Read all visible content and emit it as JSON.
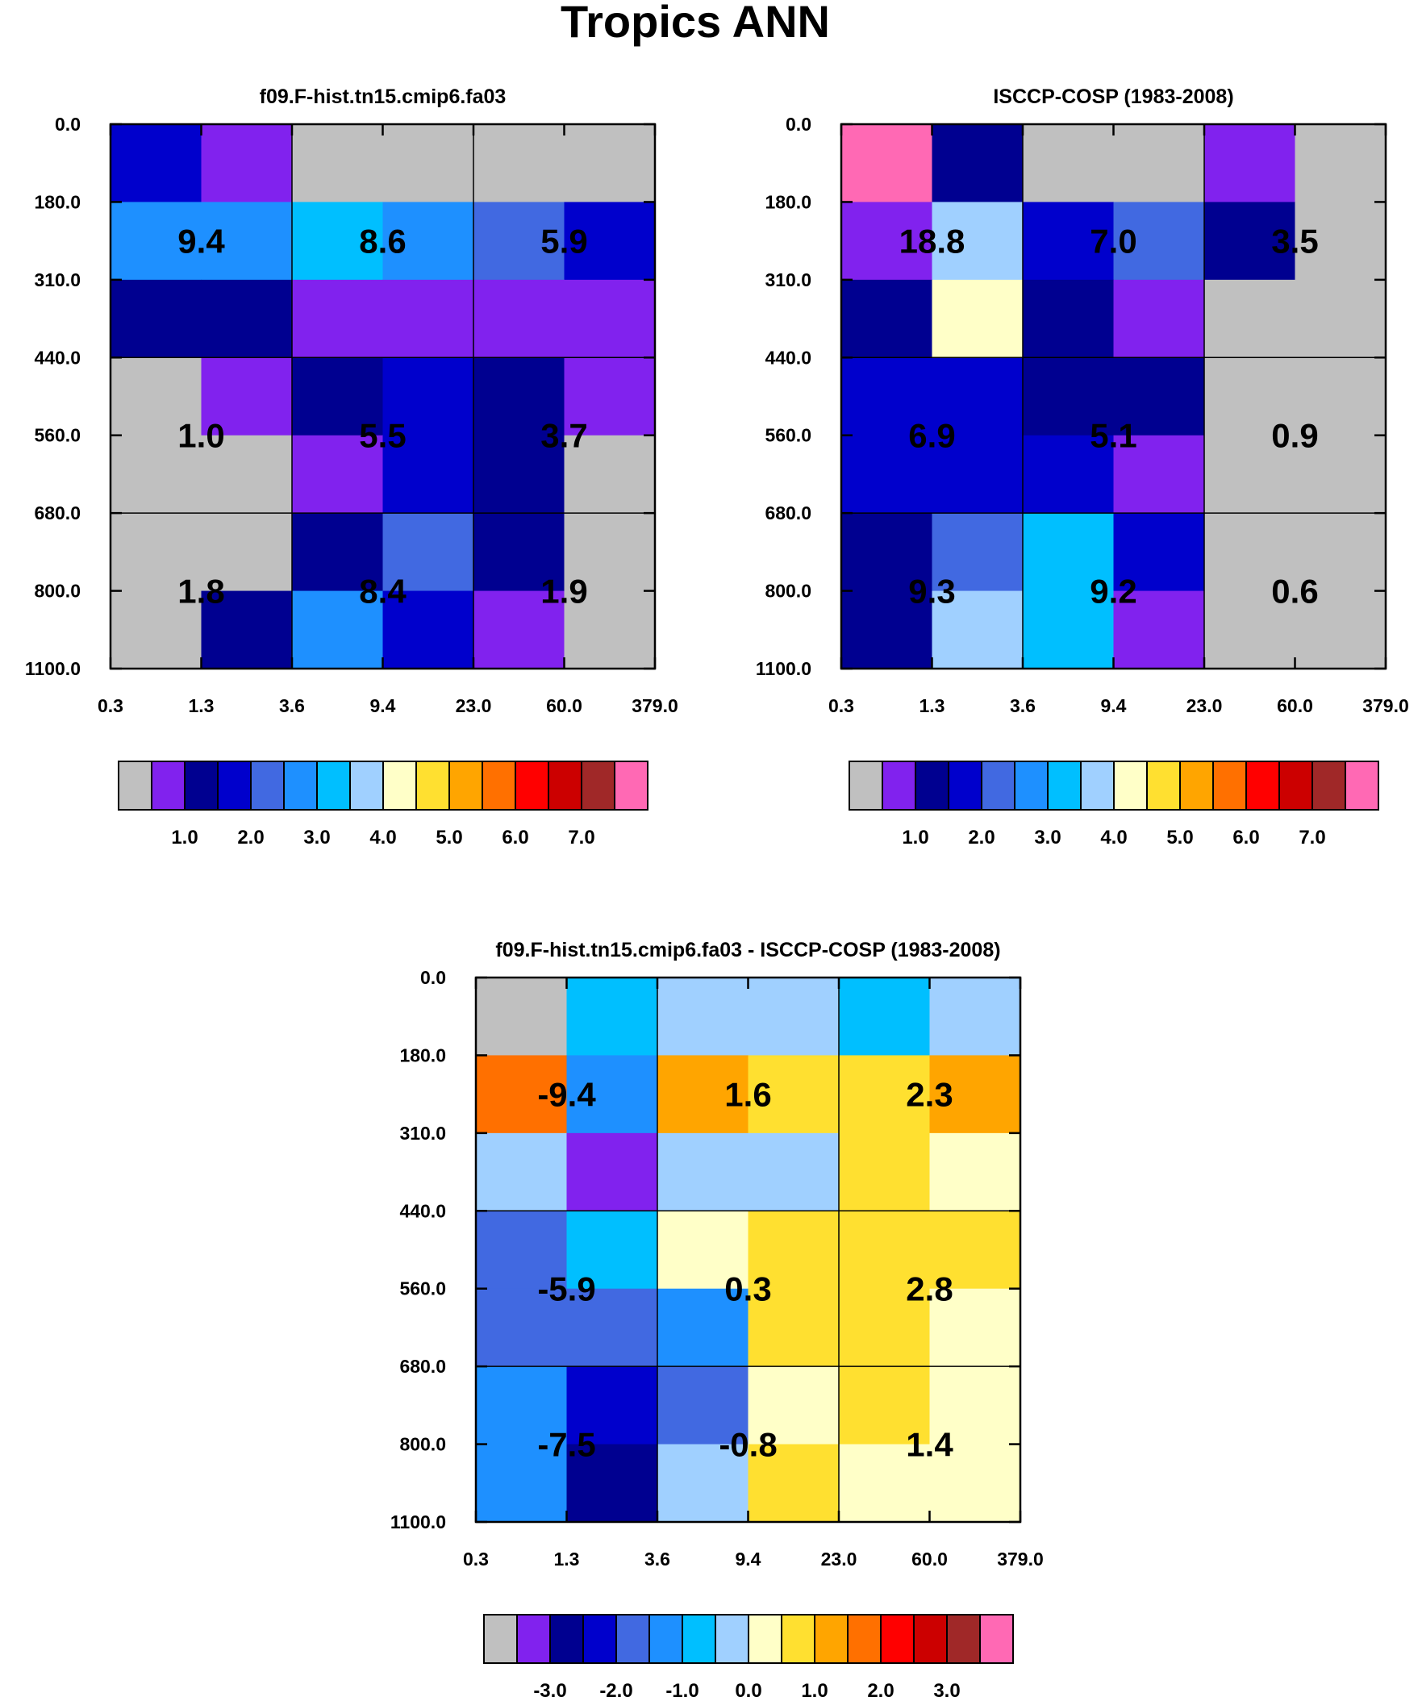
{
  "title": "Tropics ANN",
  "palette": {
    "gray": "#C0C0C0",
    "purple": "#8122EE",
    "navy": "#000090",
    "blue": "#0000CC",
    "royal": "#4169E1",
    "dodger": "#1E90FF",
    "sky": "#00BFFF",
    "pale": "#A0D0FF",
    "cream": "#FFFFC8",
    "yellow": "#FFE030",
    "gold": "#FFA500",
    "orange": "#FF7000",
    "red": "#FF0000",
    "darkred": "#CC0000",
    "brown": "#A02828",
    "pink": "#FF69B4"
  },
  "colorbar_sequence": [
    "gray",
    "purple",
    "navy",
    "blue",
    "royal",
    "dodger",
    "sky",
    "pale",
    "cream",
    "yellow",
    "gold",
    "orange",
    "red",
    "darkred",
    "brown",
    "pink"
  ],
  "chart_data": [
    {
      "type": "heatmap",
      "panel": "model",
      "title": "f09.F-hist.tn15.cmip6.fa03",
      "x_tick_labels": [
        "0.3",
        "1.3",
        "3.6",
        "9.4",
        "23.0",
        "60.0",
        "379.0"
      ],
      "y_tick_labels": [
        "0.0",
        "180.0",
        "310.0",
        "440.0",
        "560.0",
        "680.0",
        "800.0",
        "1100.0"
      ],
      "cells": [
        [
          "blue",
          "purple",
          "gray",
          "gray",
          "gray",
          "gray"
        ],
        [
          "dodger",
          "dodger",
          "sky",
          "dodger",
          "royal",
          "blue"
        ],
        [
          "navy",
          "navy",
          "purple",
          "purple",
          "purple",
          "purple"
        ],
        [
          "gray",
          "purple",
          "navy",
          "blue",
          "navy",
          "purple"
        ],
        [
          "gray",
          "gray",
          "purple",
          "blue",
          "navy",
          "gray"
        ],
        [
          "gray",
          "gray",
          "navy",
          "royal",
          "navy",
          "gray"
        ],
        [
          "gray",
          "navy",
          "dodger",
          "blue",
          "purple",
          "gray"
        ]
      ],
      "block_values": [
        [
          "9.4",
          "8.6",
          "5.9"
        ],
        [
          "1.0",
          "5.5",
          "3.7"
        ],
        [
          "1.8",
          "8.4",
          "1.9"
        ]
      ],
      "colorbar_labels": [
        "1.0",
        "2.0",
        "3.0",
        "4.0",
        "5.0",
        "6.0",
        "7.0"
      ]
    },
    {
      "type": "heatmap",
      "panel": "observations",
      "title": "ISCCP-COSP (1983-2008)",
      "x_tick_labels": [
        "0.3",
        "1.3",
        "3.6",
        "9.4",
        "23.0",
        "60.0",
        "379.0"
      ],
      "y_tick_labels": [
        "0.0",
        "180.0",
        "310.0",
        "440.0",
        "560.0",
        "680.0",
        "800.0",
        "1100.0"
      ],
      "cells": [
        [
          "pink",
          "navy",
          "gray",
          "gray",
          "purple",
          "gray"
        ],
        [
          "purple",
          "pale",
          "blue",
          "royal",
          "navy",
          "gray"
        ],
        [
          "navy",
          "cream",
          "navy",
          "purple",
          "gray",
          "gray"
        ],
        [
          "blue",
          "blue",
          "navy",
          "navy",
          "gray",
          "gray"
        ],
        [
          "blue",
          "blue",
          "blue",
          "purple",
          "gray",
          "gray"
        ],
        [
          "navy",
          "royal",
          "sky",
          "blue",
          "gray",
          "gray"
        ],
        [
          "navy",
          "pale",
          "sky",
          "purple",
          "gray",
          "gray"
        ]
      ],
      "block_values": [
        [
          "18.8",
          "7.0",
          "3.5"
        ],
        [
          "6.9",
          "5.1",
          "0.9"
        ],
        [
          "9.3",
          "9.2",
          "0.6"
        ]
      ],
      "colorbar_labels": [
        "1.0",
        "2.0",
        "3.0",
        "4.0",
        "5.0",
        "6.0",
        "7.0"
      ]
    },
    {
      "type": "heatmap",
      "panel": "difference",
      "title": "f09.F-hist.tn15.cmip6.fa03 - ISCCP-COSP (1983-2008)",
      "x_tick_labels": [
        "0.3",
        "1.3",
        "3.6",
        "9.4",
        "23.0",
        "60.0",
        "379.0"
      ],
      "y_tick_labels": [
        "0.0",
        "180.0",
        "310.0",
        "440.0",
        "560.0",
        "680.0",
        "800.0",
        "1100.0"
      ],
      "cells": [
        [
          "gray",
          "sky",
          "pale",
          "pale",
          "sky",
          "pale"
        ],
        [
          "orange",
          "dodger",
          "gold",
          "yellow",
          "yellow",
          "gold"
        ],
        [
          "pale",
          "purple",
          "pale",
          "pale",
          "yellow",
          "cream"
        ],
        [
          "royal",
          "sky",
          "cream",
          "yellow",
          "yellow",
          "yellow"
        ],
        [
          "royal",
          "royal",
          "dodger",
          "yellow",
          "yellow",
          "cream"
        ],
        [
          "dodger",
          "blue",
          "royal",
          "cream",
          "yellow",
          "cream"
        ],
        [
          "dodger",
          "navy",
          "pale",
          "yellow",
          "cream",
          "cream"
        ]
      ],
      "block_values": [
        [
          "-9.4",
          "1.6",
          "2.3"
        ],
        [
          "-5.9",
          "0.3",
          "2.8"
        ],
        [
          "-7.5",
          "-0.8",
          "1.4"
        ]
      ],
      "colorbar_labels": [
        "-3.0",
        "-2.0",
        "-1.0",
        "0.0",
        "1.0",
        "2.0",
        "3.0"
      ]
    }
  ]
}
